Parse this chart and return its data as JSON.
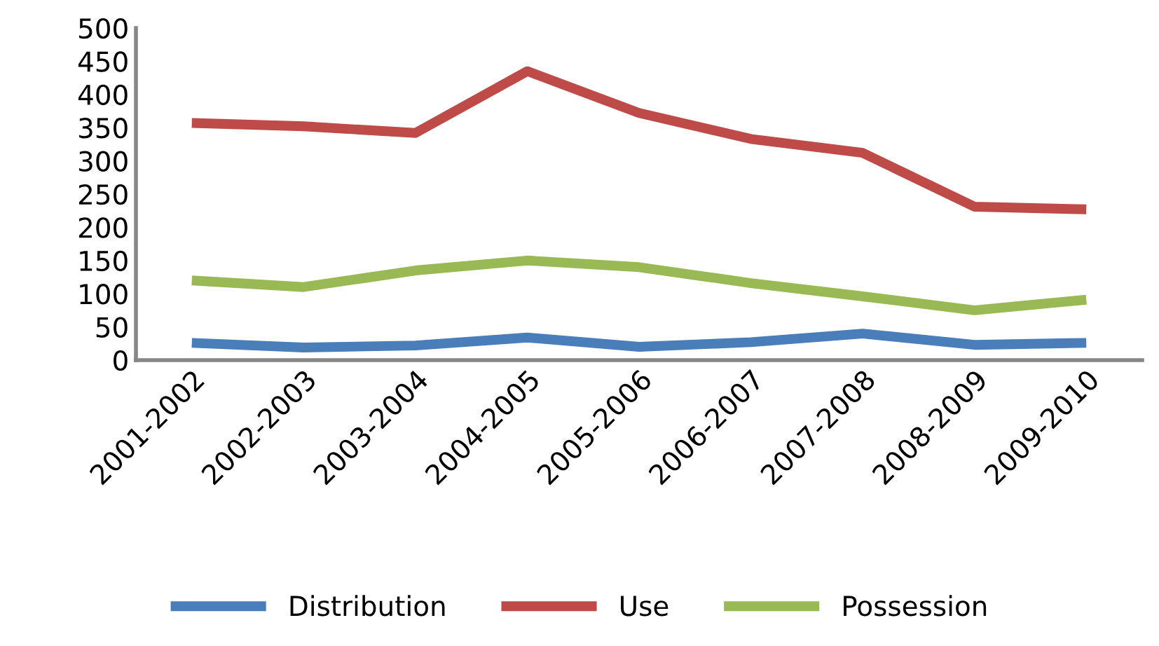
{
  "chart_data": {
    "type": "line",
    "categories": [
      "2001-2002",
      "2002-2003",
      "2003-2004",
      "2004-2005",
      "2005-2006",
      "2006-2007",
      "2007-2008",
      "2008-2009",
      "2009-2010"
    ],
    "series": [
      {
        "name": "Distribution",
        "color": "#4a7ebb",
        "values": [
          26,
          19,
          22,
          34,
          20,
          27,
          40,
          23,
          26
        ]
      },
      {
        "name": "Use",
        "color": "#be4b48",
        "values": [
          357,
          352,
          342,
          435,
          372,
          333,
          312,
          231,
          227
        ]
      },
      {
        "name": "Possession",
        "color": "#98b954",
        "values": [
          120,
          110,
          135,
          150,
          140,
          116,
          96,
          75,
          91
        ]
      }
    ],
    "ylim": [
      0,
      500
    ],
    "yticks": [
      0,
      50,
      100,
      150,
      200,
      250,
      300,
      350,
      400,
      450,
      500
    ],
    "grid": false,
    "legend": "bottom",
    "marker": "none",
    "line_style": "solid"
  }
}
